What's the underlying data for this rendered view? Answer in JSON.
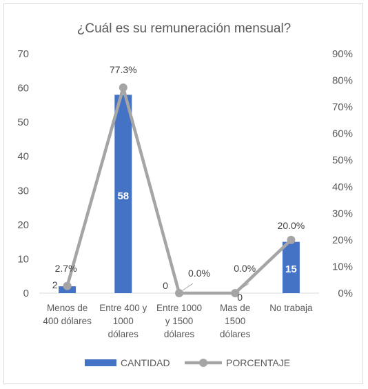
{
  "chart_data": {
    "type": "bar",
    "title": "¿Cuál es su remuneración mensual?",
    "categories": [
      [
        "Menos de",
        "400 dólares"
      ],
      [
        "Entre 400 y",
        "1000",
        "dólares"
      ],
      [
        "Entre 1000",
        "y 1500",
        "dólares"
      ],
      [
        "Mas de",
        "1500",
        "dólares"
      ],
      [
        "No trabaja"
      ]
    ],
    "series": [
      {
        "name": "CANTIDAD",
        "type": "bar",
        "axis": "left",
        "color": "#4472c4",
        "values": [
          2,
          58,
          0,
          0,
          15
        ],
        "labels": [
          "2",
          "58",
          "0",
          "0",
          "15"
        ]
      },
      {
        "name": "PORCENTAJE",
        "type": "line",
        "axis": "right",
        "color": "#a5a5a5",
        "values": [
          2.7,
          77.3,
          0.0,
          0.0,
          20.0
        ],
        "labels": [
          "2.7%",
          "77.3%",
          "0.0%",
          "0.0%",
          "20.0%"
        ]
      }
    ],
    "y_left": {
      "min": 0,
      "max": 70,
      "step": 10,
      "ticks": [
        "0",
        "10",
        "20",
        "30",
        "40",
        "50",
        "60",
        "70"
      ]
    },
    "y_right": {
      "min": 0,
      "max": 90,
      "step": 10,
      "ticks": [
        "0%",
        "10%",
        "20%",
        "30%",
        "40%",
        "50%",
        "60%",
        "70%",
        "80%",
        "90%"
      ]
    },
    "legend": {
      "position": "bottom",
      "entries": [
        "CANTIDAD",
        "PORCENTAJE"
      ]
    },
    "grid": false
  }
}
